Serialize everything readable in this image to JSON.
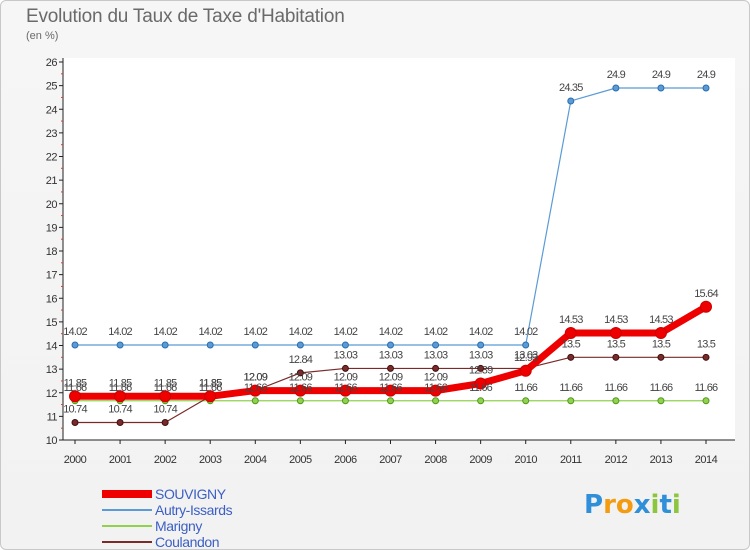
{
  "header": {
    "title": "Evolution du Taux de Taxe d'Habitation",
    "subtitle": "(en %)"
  },
  "logo": {
    "letters": [
      "P",
      "r",
      "o",
      "x",
      "i",
      "t",
      "i"
    ],
    "colors": [
      "#2f8fd8",
      "#f39c12",
      "#f39c12",
      "#2f8fd8",
      "#8cc63f",
      "#2f8fd8",
      "#8cc63f"
    ]
  },
  "chart_data": {
    "type": "line",
    "title": "Evolution du Taux de Taxe d'Habitation",
    "ylabel": "(en %)",
    "xlabel": "",
    "x": [
      "2000",
      "2001",
      "2002",
      "2003",
      "2004",
      "2005",
      "2006",
      "2007",
      "2008",
      "2009",
      "2010",
      "2011",
      "2012",
      "2013",
      "2014"
    ],
    "ylim": [
      10,
      26
    ],
    "yticks": [
      "10",
      "11",
      "12",
      "13",
      "14",
      "15",
      "16",
      "17",
      "18",
      "19",
      "20",
      "21",
      "22",
      "23",
      "24",
      "25",
      "26"
    ],
    "grid": false,
    "legend_position": "bottom-left",
    "series": [
      {
        "name": "SOUVIGNY",
        "color": "#ee0000",
        "values": [
          11.85,
          11.85,
          11.85,
          11.85,
          12.09,
          12.09,
          12.09,
          12.09,
          12.09,
          12.39,
          12.93,
          14.53,
          14.53,
          14.53,
          15.64
        ],
        "labels": [
          "11.85",
          "11.85",
          "11.85",
          "11.85",
          "12.09",
          "12.09",
          "12.09",
          "12.09",
          "12.09",
          "12.39",
          "12.93",
          "14.53",
          "14.53",
          "14.53",
          "15.64"
        ]
      },
      {
        "name": "Autry-Issards",
        "color": "#5b9bd5",
        "values": [
          14.02,
          14.02,
          14.02,
          14.02,
          14.02,
          14.02,
          14.02,
          14.02,
          14.02,
          14.02,
          14.02,
          24.35,
          24.9,
          24.9,
          24.9
        ],
        "labels": [
          "14.02",
          "14.02",
          "14.02",
          "14.02",
          "14.02",
          "14.02",
          "14.02",
          "14.02",
          "14.02",
          "14.02",
          "14.02",
          "24.35",
          "24.9",
          "24.9",
          "24.9"
        ]
      },
      {
        "name": "Marigny",
        "color": "#92d050",
        "values": [
          11.66,
          11.66,
          11.66,
          11.66,
          11.66,
          11.66,
          11.66,
          11.66,
          11.66,
          11.66,
          11.66,
          11.66,
          11.66,
          11.66,
          11.66
        ],
        "labels": [
          "11.66",
          "11.66",
          "11.66",
          "11.66",
          "11.66",
          "11.66",
          "11.66",
          "11.66",
          "11.66",
          "11.66",
          "11.66",
          "11.66",
          "11.66",
          "11.66",
          "11.66"
        ]
      },
      {
        "name": "Coulandon",
        "color": "#7b2a2a",
        "values": [
          10.74,
          10.74,
          10.74,
          11.85,
          12.09,
          12.84,
          13.03,
          13.03,
          13.03,
          13.03,
          13.03,
          13.5,
          13.5,
          13.5,
          13.5
        ],
        "labels": [
          "10.74",
          "10.74",
          "10.74",
          "11.85",
          "12.09",
          "12.84",
          "13.03",
          "13.03",
          "13.03",
          "13.03",
          "13.03",
          "13.5",
          "13.5",
          "13.5",
          "13.5"
        ]
      }
    ]
  }
}
